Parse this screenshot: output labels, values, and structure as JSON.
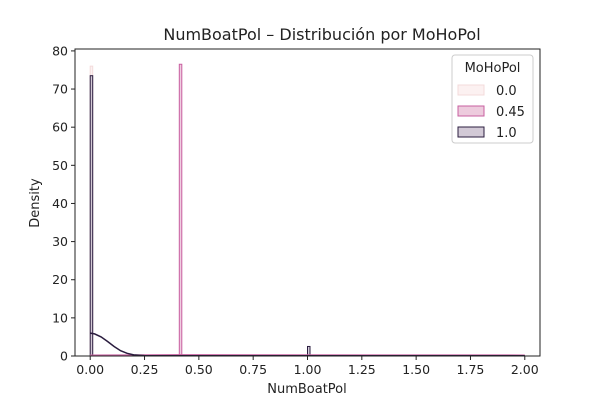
{
  "chart_data": {
    "type": "histogram",
    "title": "NumBoatPol – Distribución por MoHoPol",
    "xlabel": "NumBoatPol",
    "ylabel": "Density",
    "xlim": [
      -0.07,
      2.07
    ],
    "ylim": [
      0,
      80.5
    ],
    "xticks": [
      "0.00",
      "0.25",
      "0.50",
      "0.75",
      "1.00",
      "1.25",
      "1.50",
      "1.75",
      "2.00"
    ],
    "xtick_values": [
      0,
      0.25,
      0.5,
      0.75,
      1.0,
      1.25,
      1.5,
      1.75,
      2.0
    ],
    "yticks": [
      "0",
      "10",
      "20",
      "30",
      "40",
      "50",
      "60",
      "70",
      "80"
    ],
    "ytick_values": [
      0,
      10,
      20,
      30,
      40,
      50,
      60,
      70,
      80
    ],
    "grid": false,
    "legend": {
      "title": "MoHoPol",
      "placement": "top-right"
    },
    "series": [
      {
        "name": "0.0",
        "color": "#f3dbdb",
        "fill": "#fbeeee",
        "bars": [
          {
            "x0": 0.0,
            "x1": 0.01,
            "y": 76
          }
        ],
        "kde": [
          [
            0.0,
            0.2
          ],
          [
            0.5,
            0.2
          ],
          [
            2.0,
            0.2
          ]
        ]
      },
      {
        "name": "0.45",
        "color": "#c85fa0",
        "fill": "#e8bed5",
        "bars": [
          {
            "x0": 0.41,
            "x1": 0.42,
            "y": 76.5
          }
        ],
        "kde": [
          [
            0.0,
            0.2
          ],
          [
            0.4,
            0.3
          ],
          [
            2.0,
            0.2
          ]
        ]
      },
      {
        "name": "1.0",
        "color": "#2b1d3f",
        "fill": "#c7bccc",
        "bars": [
          {
            "x0": 0.0,
            "x1": 0.01,
            "y": 73.5
          },
          {
            "x0": 1.0,
            "x1": 1.01,
            "y": 2.5
          }
        ],
        "kde": [
          [
            0.0,
            6.0
          ],
          [
            0.02,
            5.8
          ],
          [
            0.05,
            5.0
          ],
          [
            0.08,
            3.8
          ],
          [
            0.11,
            2.5
          ],
          [
            0.14,
            1.4
          ],
          [
            0.17,
            0.7
          ],
          [
            0.2,
            0.3
          ],
          [
            0.25,
            0.1
          ],
          [
            0.35,
            0.05
          ],
          [
            1.0,
            0.05
          ],
          [
            2.0,
            0.05
          ]
        ]
      }
    ]
  }
}
